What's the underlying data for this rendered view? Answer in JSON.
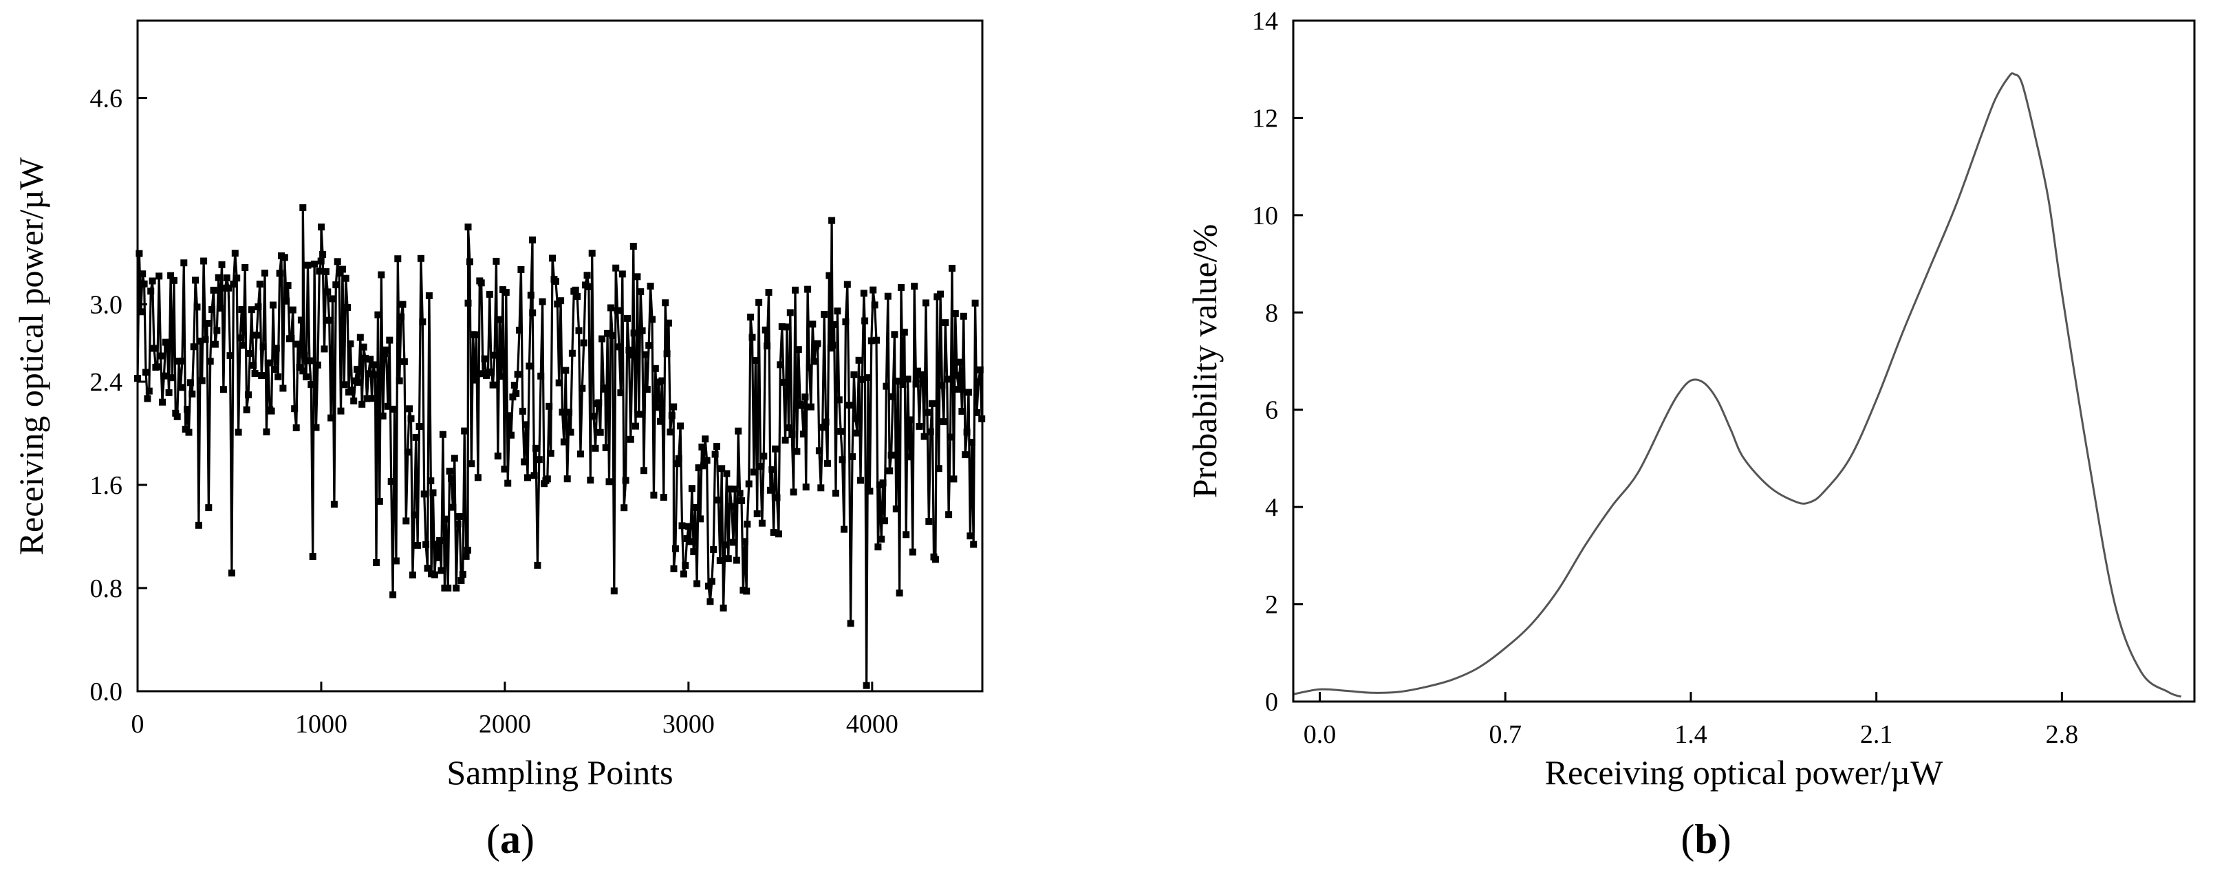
{
  "chart_data": [
    {
      "type": "line",
      "panel_label": "(a)",
      "panel_label_letter": "a",
      "xlabel": "Sampling Points",
      "ylabel": "Receiving optical power/µW",
      "xlim": [
        0,
        4600
      ],
      "ylim": [
        0,
        5.2
      ],
      "x_ticks": [
        0,
        1000,
        2000,
        3000,
        4000
      ],
      "x_tick_labels": [
        "0",
        "1000",
        "2000",
        "3000",
        "4000"
      ],
      "y_ticks": [
        0.0,
        0.8,
        1.6,
        2.4,
        3.0,
        4.6
      ],
      "y_tick_labels": [
        "0.0",
        "0.8",
        "1.6",
        "2.4",
        "3.0",
        "4.6"
      ],
      "marker": "square",
      "color": "#000000",
      "grid": false,
      "segments": [
        {
          "x_start": 0,
          "x_end": 1150,
          "base_min": 2.0,
          "base_max": 3.4,
          "dip_min": 0.4
        },
        {
          "x_start": 1150,
          "x_end": 1300,
          "base_min": 2.2,
          "base_max": 2.8,
          "dip_min": 1.3
        },
        {
          "x_start": 1300,
          "x_end": 1600,
          "base_min": 1.0,
          "base_max": 3.4,
          "dip_min": 0.7
        },
        {
          "x_start": 1600,
          "x_end": 1800,
          "base_min": 0.8,
          "base_max": 2.1,
          "dip_min": 0.8
        },
        {
          "x_start": 1800,
          "x_end": 2550,
          "base_min": 1.6,
          "base_max": 3.4,
          "dip_min": 0.6
        },
        {
          "x_start": 2550,
          "x_end": 2920,
          "base_min": 1.4,
          "base_max": 3.3,
          "dip_min": 0.5
        },
        {
          "x_start": 2920,
          "x_end": 3320,
          "base_min": 0.8,
          "base_max": 2.1,
          "dip_min": 0.6
        },
        {
          "x_start": 3320,
          "x_end": 3640,
          "base_min": 1.5,
          "base_max": 3.3,
          "dip_min": 1.2
        },
        {
          "x_start": 3640,
          "x_end": 3960,
          "base_min": 1.5,
          "base_max": 3.3,
          "dip_min": 0.4
        },
        {
          "x_start": 3960,
          "x_end": 4300,
          "base_min": 1.0,
          "base_max": 3.2,
          "dip_min": 0.0
        },
        {
          "x_start": 4300,
          "x_end": 4600,
          "base_min": 1.2,
          "base_max": 3.4,
          "dip_min": 0.8
        }
      ],
      "spikes": [
        [
          900,
          3.75
        ],
        [
          1000,
          3.6
        ],
        [
          1800,
          3.6
        ],
        [
          2150,
          3.5
        ],
        [
          2700,
          3.45
        ],
        [
          3780,
          3.65
        ]
      ]
    },
    {
      "type": "line",
      "panel_label": "(b)",
      "panel_label_letter": "b",
      "xlabel": "Receiving optical power/µW",
      "ylabel": "Probability value/%",
      "xlim": [
        -0.1,
        3.3
      ],
      "ylim": [
        0,
        14
      ],
      "x_ticks": [
        0.0,
        0.7,
        1.4,
        2.1,
        2.8
      ],
      "x_tick_labels": [
        "0.0",
        "0.7",
        "1.4",
        "2.1",
        "2.8"
      ],
      "y_ticks": [
        0,
        2,
        4,
        6,
        8,
        10,
        12,
        14
      ],
      "y_tick_labels": [
        "0",
        "2",
        "4",
        "6",
        "8",
        "10",
        "12",
        "14"
      ],
      "color": "#555555",
      "grid": false,
      "series": [
        {
          "x": [
            -0.1,
            0.0,
            0.1,
            0.2,
            0.3,
            0.4,
            0.5,
            0.6,
            0.7,
            0.8,
            0.9,
            1.0,
            1.1,
            1.2,
            1.3,
            1.35,
            1.4,
            1.45,
            1.5,
            1.55,
            1.6,
            1.7,
            1.8,
            1.85,
            1.9,
            2.0,
            2.1,
            2.2,
            2.3,
            2.4,
            2.5,
            2.55,
            2.6,
            2.62,
            2.65,
            2.7,
            2.75,
            2.8,
            2.9,
            3.0,
            3.1,
            3.2,
            3.25
          ],
          "values": [
            0.15,
            0.25,
            0.22,
            0.18,
            0.2,
            0.3,
            0.45,
            0.7,
            1.1,
            1.6,
            2.3,
            3.2,
            4.0,
            4.7,
            5.8,
            6.3,
            6.6,
            6.55,
            6.2,
            5.6,
            5.0,
            4.4,
            4.1,
            4.1,
            4.3,
            5.0,
            6.2,
            7.6,
            8.9,
            10.2,
            11.7,
            12.4,
            12.85,
            12.9,
            12.7,
            11.6,
            10.3,
            8.4,
            5.0,
            2.0,
            0.6,
            0.2,
            0.1
          ]
        }
      ]
    }
  ]
}
